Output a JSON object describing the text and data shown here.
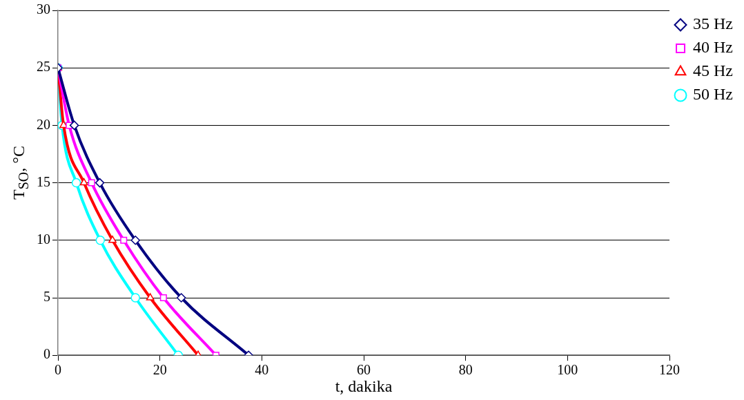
{
  "chart_data": {
    "type": "line",
    "xlabel": "t, dakika",
    "ylabel": "T$_{SO}$, °C",
    "xlim": [
      0,
      120
    ],
    "xticks": [
      0,
      20,
      40,
      60,
      80,
      100,
      120
    ],
    "ylim": [
      0,
      30
    ],
    "yticks": [
      0,
      5,
      10,
      15,
      20,
      25,
      30
    ],
    "grid": "y",
    "legend": "top right",
    "line_style": "solid",
    "series": [
      {
        "name": "35 Hz",
        "color": "#000080",
        "marker": "diamond",
        "x": [
          0,
          3.2,
          8.2,
          15.2,
          24.2,
          37.4
        ],
        "values": [
          25,
          20,
          15,
          10,
          5,
          0
        ]
      },
      {
        "name": "40 Hz",
        "color": "#ff00ff",
        "marker": "square",
        "x": [
          0,
          2.2,
          6.6,
          12.9,
          20.7,
          31.0
        ],
        "values": [
          25,
          20,
          15,
          10,
          5,
          0
        ]
      },
      {
        "name": "45 Hz",
        "color": "#ff0000",
        "marker": "triangle",
        "x": [
          0,
          1.1,
          5.1,
          10.7,
          18.1,
          27.5
        ],
        "values": [
          25,
          20,
          15,
          10,
          5,
          0
        ]
      },
      {
        "name": "50 Hz",
        "color": "#00ffff",
        "marker": "circle",
        "x": [
          0,
          0.8,
          3.6,
          8.3,
          15.2,
          23.6
        ],
        "values": [
          25,
          20,
          15,
          10,
          5,
          0
        ]
      }
    ]
  }
}
